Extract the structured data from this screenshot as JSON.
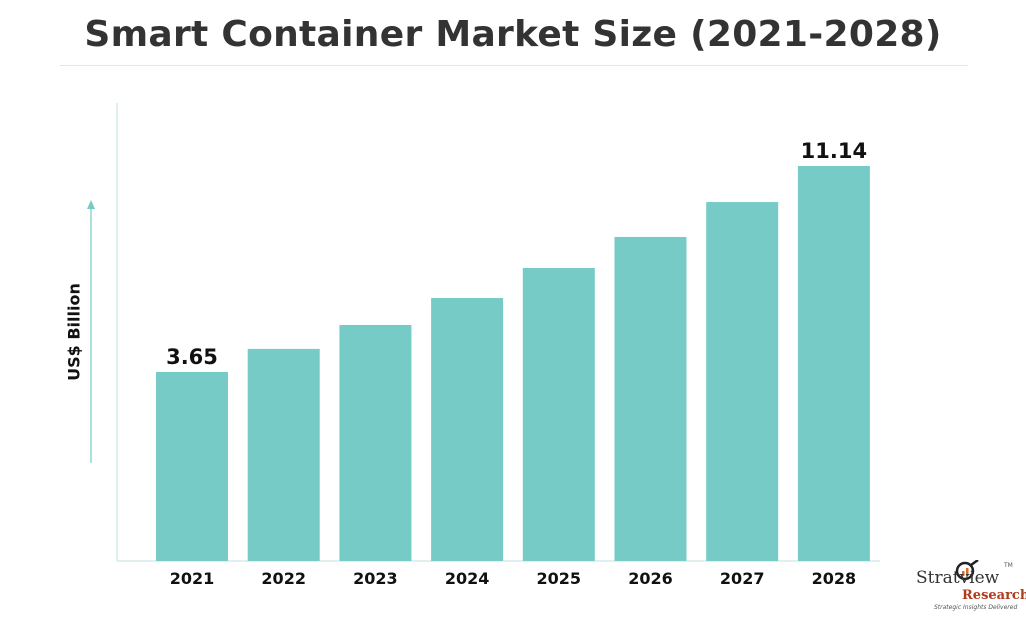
{
  "chart_data": {
    "type": "bar",
    "title": "Smart Container Market Size (2021-2028)",
    "ylabel": "US$ Billion",
    "xlabel": "",
    "categories": [
      "2021",
      "2022",
      "2023",
      "2024",
      "2025",
      "2026",
      "2027",
      "2028"
    ],
    "values": [
      3.65,
      4.49,
      5.36,
      6.34,
      7.43,
      8.56,
      9.83,
      11.14
    ],
    "data_labels": {
      "2021": "3.65",
      "2028": "11.14"
    },
    "grid": false,
    "legend": "none",
    "bar_color": "#76cbc6",
    "axis_color": "#d6ecea"
  },
  "logo": {
    "name": "Stratview",
    "sub": "Research",
    "tagline": "Strategic Insights Delivered",
    "tm": "TM"
  }
}
